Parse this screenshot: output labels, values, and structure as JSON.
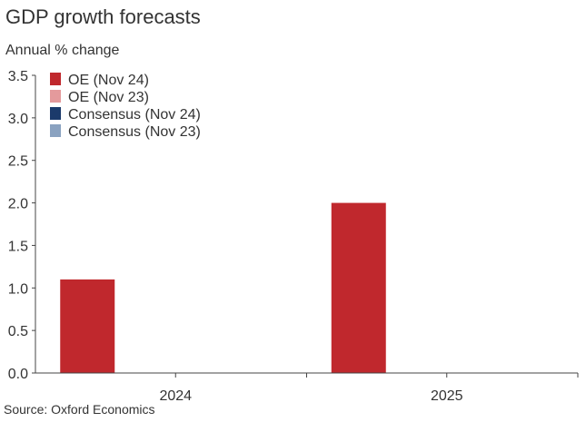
{
  "chart_data": {
    "type": "bar",
    "title": "GDP growth forecasts",
    "ylabel": "Annual % change",
    "source": "Source: Oxford Economics",
    "categories": [
      "2024",
      "2025"
    ],
    "series": [
      {
        "name": "OE (Nov 24)",
        "color": "#c0282d",
        "values": [
          1.1,
          2.0
        ]
      },
      {
        "name": "OE (Nov 23)",
        "color": "#e49a9c",
        "values": [
          null,
          null
        ]
      },
      {
        "name": "Consensus (Nov 24)",
        "color": "#1b3a6b",
        "values": [
          null,
          null
        ]
      },
      {
        "name": "Consensus (Nov 23)",
        "color": "#8aa2c0",
        "values": [
          null,
          null
        ]
      }
    ],
    "ylim": [
      0,
      3.5
    ],
    "yticks": [
      "0.0",
      "0.5",
      "1.0",
      "1.5",
      "2.0",
      "2.5",
      "3.0",
      "3.5"
    ],
    "legend_position": "top-left",
    "grid": false
  }
}
